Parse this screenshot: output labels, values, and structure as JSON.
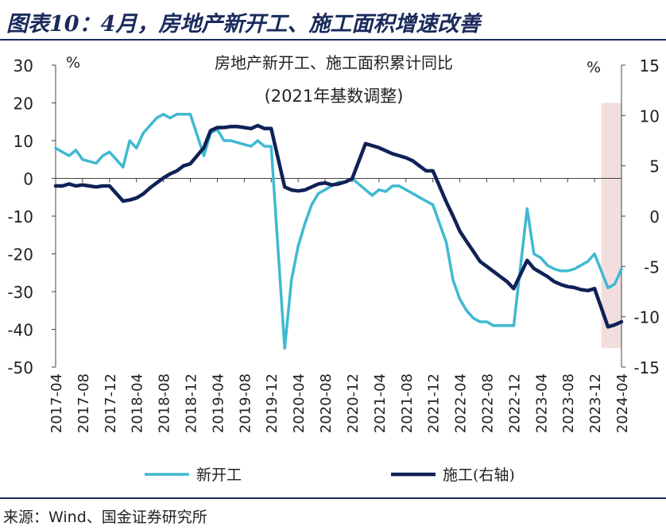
{
  "header": {
    "title": "图表10：4月，房地产新开工、施工面积增速改善"
  },
  "source": "来源：Wind、国金证券研究所",
  "chart_data": {
    "type": "line",
    "title": "房地产新开工、施工面积累计同比",
    "subtitle": "(2021年基数调整)",
    "left_unit": "%",
    "right_unit": "%",
    "left_axis": {
      "min": -50,
      "max": 30,
      "ticks": [
        30,
        20,
        10,
        0,
        -10,
        -20,
        -30,
        -40,
        -50
      ]
    },
    "right_axis": {
      "min": -15,
      "max": 15,
      "ticks": [
        15,
        10,
        5,
        0,
        -5,
        -10,
        -15
      ]
    },
    "x_ticks": [
      "2017-04",
      "2017-08",
      "2017-12",
      "2018-04",
      "2018-08",
      "2018-12",
      "2019-04",
      "2019-08",
      "2019-12",
      "2020-04",
      "2020-08",
      "2020-12",
      "2021-04",
      "2021-08",
      "2021-12",
      "2022-04",
      "2022-08",
      "2022-12",
      "2023-04",
      "2023-08",
      "2023-12",
      "2024-04"
    ],
    "highlight": {
      "from": "2024-01",
      "to": "2024-04",
      "color": "#f3dede"
    },
    "colors": {
      "xingkaigong": "#3fb9d1",
      "shigong": "#0f2157"
    },
    "legend": [
      "新开工",
      "施工(右轴)"
    ],
    "series": [
      {
        "name": "新开工",
        "axis": "left",
        "values": [
          [
            "2017-04",
            8
          ],
          [
            "2017-05",
            7
          ],
          [
            "2017-06",
            6
          ],
          [
            "2017-07",
            7.5
          ],
          [
            "2017-08",
            5
          ],
          [
            "2017-09",
            4.5
          ],
          [
            "2017-10",
            4
          ],
          [
            "2017-11",
            6
          ],
          [
            "2017-12",
            7
          ],
          [
            "2018-02",
            3
          ],
          [
            "2018-03",
            10
          ],
          [
            "2018-04",
            8
          ],
          [
            "2018-05",
            12
          ],
          [
            "2018-06",
            14
          ],
          [
            "2018-07",
            16
          ],
          [
            "2018-08",
            17
          ],
          [
            "2018-09",
            16
          ],
          [
            "2018-10",
            17
          ],
          [
            "2018-11",
            17
          ],
          [
            "2018-12",
            17
          ],
          [
            "2019-02",
            6
          ],
          [
            "2019-03",
            12
          ],
          [
            "2019-04",
            13
          ],
          [
            "2019-05",
            10
          ],
          [
            "2019-06",
            10
          ],
          [
            "2019-07",
            9.5
          ],
          [
            "2019-08",
            9
          ],
          [
            "2019-09",
            8.5
          ],
          [
            "2019-10",
            10
          ],
          [
            "2019-11",
            8.5
          ],
          [
            "2019-12",
            8.5
          ],
          [
            "2020-02",
            -45
          ],
          [
            "2020-03",
            -27
          ],
          [
            "2020-04",
            -18
          ],
          [
            "2020-05",
            -12
          ],
          [
            "2020-06",
            -7
          ],
          [
            "2020-07",
            -4
          ],
          [
            "2020-08",
            -3
          ],
          [
            "2020-09",
            -2
          ],
          [
            "2020-10",
            -1
          ],
          [
            "2020-11",
            -1
          ],
          [
            "2020-12",
            0
          ],
          [
            "2021-02",
            -3
          ],
          [
            "2021-03",
            -4.5
          ],
          [
            "2021-04",
            -3
          ],
          [
            "2021-05",
            -3.5
          ],
          [
            "2021-06",
            -2
          ],
          [
            "2021-07",
            -2
          ],
          [
            "2021-08",
            -3
          ],
          [
            "2021-09",
            -4
          ],
          [
            "2021-10",
            -5
          ],
          [
            "2021-11",
            -6
          ],
          [
            "2021-12",
            -7
          ],
          [
            "2022-02",
            -17
          ],
          [
            "2022-03",
            -27
          ],
          [
            "2022-04",
            -32
          ],
          [
            "2022-05",
            -35
          ],
          [
            "2022-06",
            -37
          ],
          [
            "2022-07",
            -38
          ],
          [
            "2022-08",
            -38
          ],
          [
            "2022-09",
            -39
          ],
          [
            "2022-10",
            -39
          ],
          [
            "2022-11",
            -39
          ],
          [
            "2022-12",
            -39
          ],
          [
            "2023-02",
            -8
          ],
          [
            "2023-03",
            -20
          ],
          [
            "2023-04",
            -21
          ],
          [
            "2023-05",
            -23
          ],
          [
            "2023-06",
            -24
          ],
          [
            "2023-07",
            -24.5
          ],
          [
            "2023-08",
            -24.5
          ],
          [
            "2023-09",
            -24
          ],
          [
            "2023-10",
            -23
          ],
          [
            "2023-11",
            -22
          ],
          [
            "2023-12",
            -20
          ],
          [
            "2024-02",
            -29
          ],
          [
            "2024-03",
            -28
          ],
          [
            "2024-04",
            -24
          ]
        ]
      },
      {
        "name": "施工(右轴)",
        "axis": "right",
        "values": [
          [
            "2017-04",
            3
          ],
          [
            "2017-05",
            3
          ],
          [
            "2017-06",
            3.2
          ],
          [
            "2017-07",
            3
          ],
          [
            "2017-08",
            3.1
          ],
          [
            "2017-09",
            3
          ],
          [
            "2017-10",
            2.9
          ],
          [
            "2017-11",
            3
          ],
          [
            "2017-12",
            3
          ],
          [
            "2018-02",
            1.5
          ],
          [
            "2018-03",
            1.6
          ],
          [
            "2018-04",
            1.8
          ],
          [
            "2018-05",
            2.2
          ],
          [
            "2018-06",
            2.8
          ],
          [
            "2018-07",
            3.3
          ],
          [
            "2018-08",
            3.8
          ],
          [
            "2018-09",
            4.2
          ],
          [
            "2018-10",
            4.5
          ],
          [
            "2018-11",
            5
          ],
          [
            "2018-12",
            5.2
          ],
          [
            "2019-02",
            6.8
          ],
          [
            "2019-03",
            8.5
          ],
          [
            "2019-04",
            8.8
          ],
          [
            "2019-05",
            8.8
          ],
          [
            "2019-06",
            8.9
          ],
          [
            "2019-07",
            8.9
          ],
          [
            "2019-08",
            8.8
          ],
          [
            "2019-09",
            8.7
          ],
          [
            "2019-10",
            9
          ],
          [
            "2019-11",
            8.7
          ],
          [
            "2019-12",
            8.7
          ],
          [
            "2020-02",
            2.9
          ],
          [
            "2020-03",
            2.6
          ],
          [
            "2020-04",
            2.5
          ],
          [
            "2020-05",
            2.6
          ],
          [
            "2020-06",
            2.9
          ],
          [
            "2020-07",
            3.2
          ],
          [
            "2020-08",
            3.3
          ],
          [
            "2020-09",
            3.1
          ],
          [
            "2020-10",
            3.2
          ],
          [
            "2020-11",
            3.4
          ],
          [
            "2020-12",
            3.7
          ],
          [
            "2021-02",
            7.2
          ],
          [
            "2021-03",
            7
          ],
          [
            "2021-04",
            6.8
          ],
          [
            "2021-05",
            6.5
          ],
          [
            "2021-06",
            6.2
          ],
          [
            "2021-07",
            6
          ],
          [
            "2021-08",
            5.8
          ],
          [
            "2021-09",
            5.5
          ],
          [
            "2021-10",
            5
          ],
          [
            "2021-11",
            4.5
          ],
          [
            "2021-12",
            4.5
          ],
          [
            "2022-02",
            1.4
          ],
          [
            "2022-03",
            0
          ],
          [
            "2022-04",
            -1.5
          ],
          [
            "2022-05",
            -2.5
          ],
          [
            "2022-06",
            -3.5
          ],
          [
            "2022-07",
            -4.5
          ],
          [
            "2022-08",
            -5
          ],
          [
            "2022-09",
            -5.5
          ],
          [
            "2022-10",
            -6
          ],
          [
            "2022-11",
            -6.5
          ],
          [
            "2022-12",
            -7.2
          ],
          [
            "2023-02",
            -4.4
          ],
          [
            "2023-03",
            -5.2
          ],
          [
            "2023-04",
            -5.6
          ],
          [
            "2023-05",
            -6
          ],
          [
            "2023-06",
            -6.5
          ],
          [
            "2023-07",
            -6.8
          ],
          [
            "2023-08",
            -7
          ],
          [
            "2023-09",
            -7.1
          ],
          [
            "2023-10",
            -7.3
          ],
          [
            "2023-11",
            -7.4
          ],
          [
            "2023-12",
            -7.2
          ],
          [
            "2024-02",
            -11
          ],
          [
            "2024-03",
            -10.8
          ],
          [
            "2024-04",
            -10.5
          ]
        ]
      }
    ]
  }
}
